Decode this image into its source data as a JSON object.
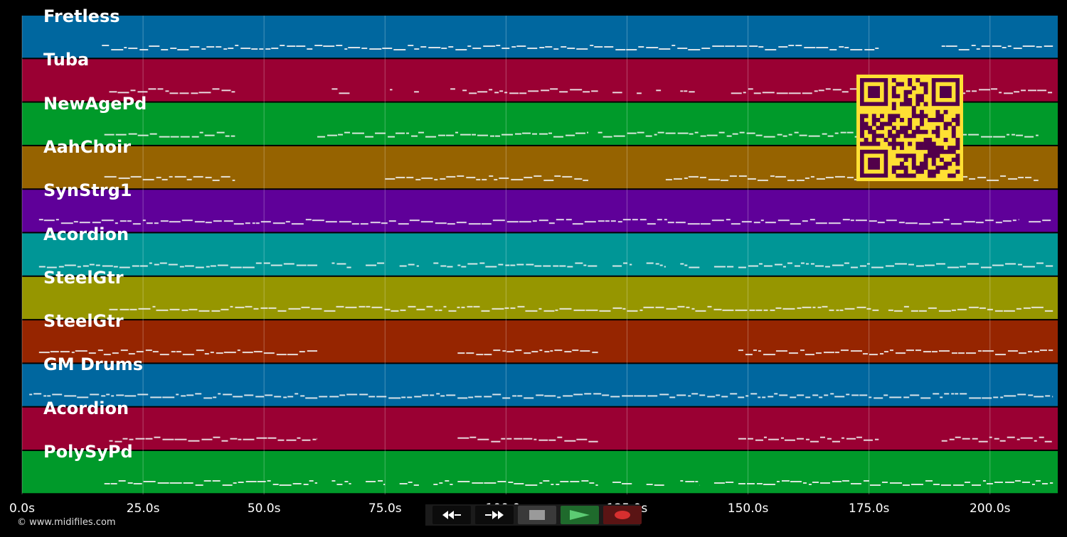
{
  "timeline": {
    "max_seconds": 214,
    "tick_labels": [
      "0.0s",
      "25.0s",
      "50.0s",
      "75.0s",
      "100.0s",
      "125.0s",
      "150.0s",
      "175.0s",
      "200.0s"
    ]
  },
  "tracks": [
    {
      "name": "Fretless",
      "color": "#00679f"
    },
    {
      "name": "Tuba",
      "color": "#9a0033"
    },
    {
      "name": "NewAgePd",
      "color": "#009a2a"
    },
    {
      "name": "AahChoir",
      "color": "#966300"
    },
    {
      "name": "SynStrg1",
      "color": "#5f0099"
    },
    {
      "name": "Acordion",
      "color": "#009696"
    },
    {
      "name": "SteelGtr",
      "color": "#969600"
    },
    {
      "name": "SteelGtr",
      "color": "#962500"
    },
    {
      "name": "GM Drums",
      "color": "#00679f"
    },
    {
      "name": "Acordion",
      "color": "#9a0033"
    },
    {
      "name": "PolySyPd",
      "color": "#009a2a"
    }
  ],
  "note_segments": [
    [
      [
        16.5,
        177
      ],
      [
        190,
        213
      ]
    ],
    [
      [
        18,
        44
      ],
      [
        64,
        68
      ],
      [
        76,
        76.5
      ],
      [
        81,
        82
      ],
      [
        88.5,
        89.5
      ],
      [
        91,
        119
      ],
      [
        122,
        124
      ],
      [
        127,
        128
      ],
      [
        131,
        132
      ],
      [
        136,
        139
      ],
      [
        146.5,
        176
      ],
      [
        178,
        213
      ]
    ],
    [
      [
        17,
        44
      ],
      [
        61,
        117
      ],
      [
        119,
        176
      ],
      [
        178,
        210
      ]
    ],
    [
      [
        17,
        44
      ],
      [
        75,
        117
      ],
      [
        133,
        176
      ],
      [
        178,
        210
      ]
    ],
    [
      [
        3.5,
        206
      ],
      [
        208,
        213
      ]
    ],
    [
      [
        3.5,
        61
      ],
      [
        64,
        68
      ],
      [
        71,
        75
      ],
      [
        78,
        82
      ],
      [
        85,
        89
      ],
      [
        90,
        119
      ],
      [
        122,
        126
      ],
      [
        129,
        133
      ],
      [
        136,
        140
      ],
      [
        143,
        147
      ],
      [
        148,
        213
      ]
    ],
    [
      [
        18,
        177
      ],
      [
        179,
        213
      ]
    ],
    [
      [
        3.5,
        61
      ],
      [
        90,
        119
      ],
      [
        148,
        213
      ]
    ],
    [
      [
        1.5,
        213
      ]
    ],
    [
      [
        18,
        61
      ],
      [
        90,
        119
      ],
      [
        148,
        177
      ],
      [
        190,
        213
      ]
    ],
    [
      [
        17,
        61
      ],
      [
        64,
        68
      ],
      [
        71,
        75
      ],
      [
        78,
        82
      ],
      [
        85,
        89
      ],
      [
        90,
        119
      ],
      [
        122,
        126
      ],
      [
        129,
        133
      ],
      [
        136,
        140
      ],
      [
        143,
        147
      ],
      [
        148,
        213
      ]
    ]
  ],
  "transport": {
    "rewind": "rewind-icon",
    "fast_forward": "fast-forward-icon",
    "stop": "stop-icon",
    "play": "play-icon",
    "record": "record-icon"
  },
  "copyright": "© www.midifiles.com",
  "qr": {
    "fg": "#52004a",
    "bg": "#ffe033"
  }
}
